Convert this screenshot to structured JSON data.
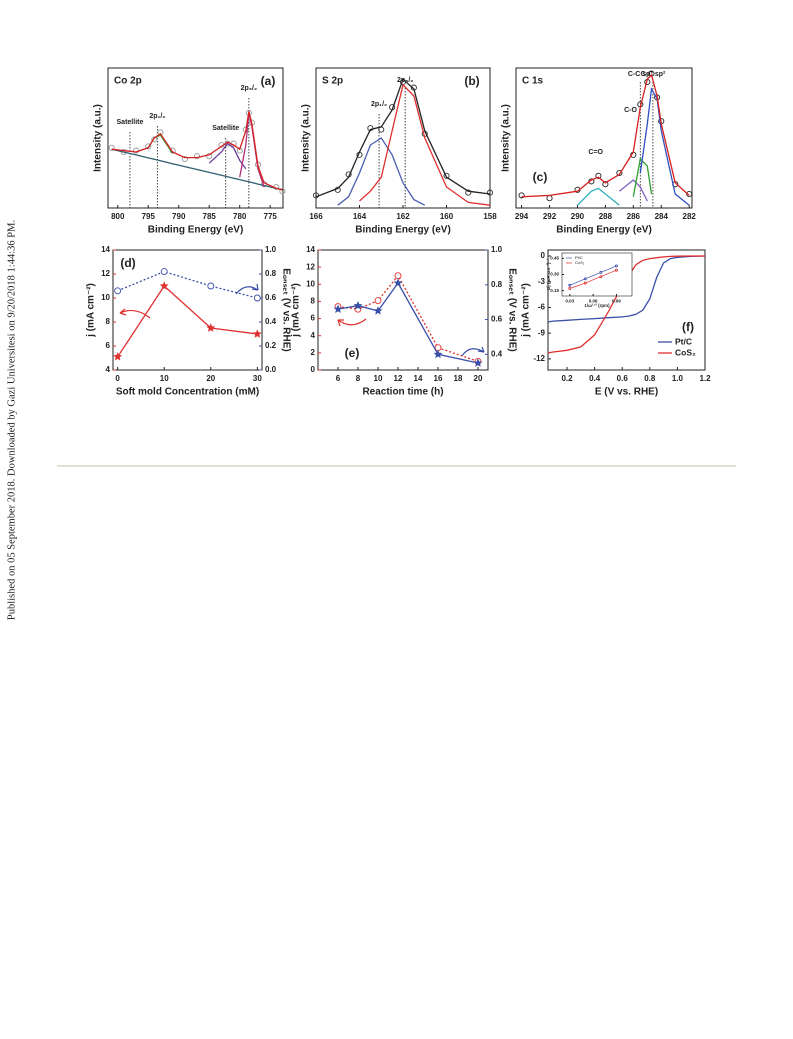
{
  "side_note": "Published on 05 September 2018. Downloaded by Gazi Universitesi on 9/20/2018 1:44:36 PM.",
  "chart_data": [
    {
      "type": "line",
      "title": "Co 2p",
      "panel_label": "(a)",
      "xlabel": "Binding Energy (eV)",
      "ylabel": "Intensity (a.u.)",
      "x": [
        801,
        799,
        797,
        795,
        794,
        793,
        791,
        789,
        787,
        785,
        783,
        782,
        781,
        780,
        779,
        778.5,
        778,
        777,
        776,
        774,
        773
      ],
      "xlim": [
        801.6,
        772.9
      ],
      "xticks": [
        800,
        795,
        790,
        785,
        780,
        775
      ],
      "ylim": [
        0,
        100
      ],
      "series": [
        {
          "color": "#9a9a9a",
          "style": "points",
          "values": [
            43,
            40,
            41,
            44,
            49,
            54,
            41,
            35,
            37,
            37,
            45,
            46,
            46,
            41,
            56,
            68,
            61,
            31,
            17,
            15,
            12
          ]
        },
        {
          "color": "#2f5f6f",
          "values": [
            42,
            39.9,
            37.9,
            35.8,
            34.8,
            33.7,
            31.6,
            29.6,
            27.5,
            25.4,
            23.4,
            22.3,
            21.3,
            20.3,
            19.2,
            18.7,
            18.2,
            17.1,
            16.1,
            14,
            13
          ]
        },
        {
          "color": "#3aa040",
          "values": [
            null,
            null,
            null,
            43,
            50,
            52,
            39,
            null,
            null,
            null,
            null,
            null,
            null,
            null,
            null,
            null,
            null,
            null,
            null,
            null,
            null
          ]
        },
        {
          "color": "#6a3d9a",
          "values": [
            null,
            null,
            null,
            null,
            null,
            null,
            null,
            null,
            null,
            32,
            40,
            46,
            43,
            34,
            28,
            null,
            null,
            null,
            null,
            null,
            null
          ]
        },
        {
          "color": "#b0307a",
          "values": [
            null,
            null,
            null,
            null,
            null,
            null,
            null,
            null,
            null,
            null,
            null,
            null,
            null,
            22,
            45,
            68,
            58,
            28,
            15,
            null,
            null
          ]
        },
        {
          "color": "#d62020",
          "values": [
            42,
            41,
            40,
            43,
            50,
            53,
            40,
            36,
            36,
            38,
            44,
            47,
            45,
            42,
            55,
            69,
            60,
            30,
            18,
            14,
            13
          ]
        }
      ],
      "markers": [
        {
          "x": 798,
          "label": "Satellite",
          "dotted": true
        },
        {
          "x": 793.5,
          "label": "2p₁/₂",
          "dotted": true
        },
        {
          "x": 782.3,
          "label": "Satellite",
          "dotted": true
        },
        {
          "x": 778.5,
          "label": "2p₃/₂",
          "dotted": true
        }
      ]
    },
    {
      "type": "line",
      "title": "S 2p",
      "panel_label": "(b)",
      "xlabel": "Binding Energy (eV)",
      "ylabel": "Intensity (a.u.)",
      "x": [
        166,
        165,
        164.5,
        164,
        163.5,
        163,
        162.5,
        162,
        161.5,
        161,
        160,
        159,
        158
      ],
      "xlim": [
        166,
        158
      ],
      "xticks": [
        166,
        164,
        162,
        160,
        158
      ],
      "ylim": [
        0,
        100
      ],
      "series": [
        {
          "color": "#333333",
          "style": "points",
          "values": [
            9,
            13,
            24,
            38,
            57,
            56,
            72,
            90,
            86,
            53,
            23,
            11,
            11
          ]
        },
        {
          "color": "#4a5fb0",
          "values": [
            null,
            2,
            8,
            25,
            45,
            50,
            38,
            18,
            6,
            2,
            null,
            null,
            null
          ]
        },
        {
          "color": "#e03030",
          "values": [
            null,
            null,
            null,
            5,
            12,
            22,
            55,
            88,
            80,
            50,
            15,
            4,
            2
          ]
        },
        {
          "color": "#222222",
          "values": [
            8,
            14,
            22,
            40,
            56,
            58,
            70,
            92,
            85,
            55,
            22,
            12,
            10
          ]
        }
      ],
      "markers": [
        {
          "x": 163.1,
          "label": "2p₁/₂",
          "dotted": true
        },
        {
          "x": 161.9,
          "label": "2p₃/₂",
          "dotted": true
        }
      ]
    },
    {
      "type": "line",
      "title": "C 1s",
      "panel_label": "(c)",
      "xlabel": "Binding Energy (eV)",
      "ylabel": "Intensity (a.u.)",
      "x": [
        294,
        292,
        290,
        289,
        288.5,
        288,
        287,
        286,
        285.5,
        285,
        284.7,
        284.3,
        284,
        283,
        282
      ],
      "xlim": [
        294.4,
        281.8
      ],
      "xticks": [
        294,
        292,
        290,
        288,
        286,
        284,
        282
      ],
      "ylim": [
        0,
        100
      ],
      "series": [
        {
          "color": "#222222",
          "style": "points",
          "values": [
            9,
            7,
            13,
            19,
            23,
            17,
            25,
            38,
            74,
            90,
            96,
            79,
            62,
            17,
            10
          ]
        },
        {
          "color": "#30b0c0",
          "values": [
            null,
            null,
            2,
            12,
            14,
            10,
            2,
            null,
            null,
            null,
            null,
            null,
            null,
            null,
            null
          ]
        },
        {
          "color": "#8060c0",
          "values": [
            null,
            null,
            null,
            null,
            null,
            null,
            12,
            20,
            15,
            5,
            null,
            null,
            null,
            null,
            null
          ]
        },
        {
          "color": "#30a030",
          "values": [
            null,
            null,
            null,
            null,
            null,
            null,
            null,
            8,
            35,
            30,
            10,
            null,
            null,
            null,
            null
          ]
        },
        {
          "color": "#3050c0",
          "values": [
            null,
            null,
            null,
            null,
            null,
            null,
            null,
            null,
            25,
            60,
            85,
            78,
            55,
            10,
            2
          ]
        },
        {
          "color": "#d62020",
          "values": [
            8,
            9,
            12,
            20,
            22,
            18,
            24,
            40,
            72,
            92,
            95,
            80,
            60,
            18,
            9
          ]
        }
      ],
      "markers": [
        {
          "x": 288.7,
          "label": "C=O",
          "dotted": false
        },
        {
          "x": 286.2,
          "label": "C-O",
          "dotted": false
        },
        {
          "x": 285.5,
          "label": "C-C sp³",
          "dotted": true
        },
        {
          "x": 284.6,
          "label": "C-C sp²",
          "dotted": true
        }
      ]
    },
    {
      "type": "line",
      "panel_label": "(d)",
      "xlabel": "Soft mold Concentration (mM)",
      "ylabel": "j (mA cm⁻²)",
      "y2label": "Eₒₙₛₑₜ (V vs. RHE)",
      "ycolor": "#e03030",
      "y2color": "#3a4fa8",
      "x": [
        0,
        10,
        20,
        30
      ],
      "xlim": [
        -1,
        31
      ],
      "xticks": [
        0,
        10,
        20,
        30
      ],
      "ylim": [
        4,
        14
      ],
      "yticks": [
        4,
        6,
        8,
        10,
        12,
        14
      ],
      "y2lim": [
        0,
        1
      ],
      "y2ticks": [
        {
          "value": 0,
          "label": "0.0"
        },
        0.2,
        0.4,
        0.6,
        0.8,
        {
          "value": 1,
          "label": "1.0"
        }
      ],
      "series": [
        {
          "color": "#e03030",
          "marker": "star",
          "values": [
            5.1,
            11,
            7.5,
            7
          ]
        },
        {
          "color": "#3a4fa8",
          "marker": "circle",
          "dash": true,
          "axis": "y2",
          "values": [
            0.66,
            0.82,
            0.7,
            0.6
          ]
        }
      ]
    },
    {
      "type": "line",
      "panel_label": "(e)",
      "xlabel": "Reaction time (h)",
      "ylabel": "j (mA cm⁻²)",
      "y2label": "Eₒₙₛₑₜ (V vs. RHE)",
      "ycolor": "#e03030",
      "y2color": "#3a4fa8",
      "x": [
        6,
        8,
        10,
        12,
        16,
        20
      ],
      "xlim": [
        4,
        21
      ],
      "xticks": [
        6,
        8,
        10,
        12,
        14,
        16,
        18,
        20
      ],
      "ylim": [
        0,
        14
      ],
      "yticks": [
        0,
        2,
        4,
        6,
        8,
        10,
        12,
        14
      ],
      "y2lim": [
        0.31,
        1
      ],
      "y2ticks": [
        0.4,
        0.6,
        0.8,
        {
          "value": 1,
          "label": "1.0"
        }
      ],
      "series": [
        {
          "color": "#e03030",
          "marker": "circle",
          "dash": true,
          "values": [
            7.4,
            7.1,
            8.1,
            11,
            2.6,
            1.0
          ]
        },
        {
          "color": "#3a4fa8",
          "marker": "star",
          "axis": "y2",
          "values": [
            0.66,
            0.68,
            0.65,
            0.81,
            0.4,
            0.35
          ]
        }
      ]
    },
    {
      "type": "line",
      "panel_label": "(f)",
      "xlabel": "E (V vs. RHE)",
      "ylabel": "j (mA cm⁻²)",
      "legend": "lower right",
      "x": [
        0.062,
        0.1,
        0.2,
        0.3,
        0.4,
        0.5,
        0.6,
        0.65,
        0.7,
        0.75,
        0.8,
        0.85,
        0.9,
        0.95,
        1.0,
        1.1,
        1.2
      ],
      "xlim": [
        0.062,
        1.2
      ],
      "xticks": [
        0.2,
        0.4,
        0.6,
        0.8,
        {
          "value": 1,
          "label": "1.0"
        },
        1.2
      ],
      "ylim": [
        -13.3,
        0.7
      ],
      "yticks": [
        0,
        -3,
        -6,
        -9,
        -12
      ],
      "series": [
        {
          "name": "Pt/C",
          "color": "#3a4fa8",
          "values": [
            -7.7,
            -7.6,
            -7.5,
            -7.4,
            -7.3,
            -7.2,
            -7.1,
            -7.0,
            -6.8,
            -6.3,
            -5.0,
            -2.5,
            -0.8,
            -0.3,
            -0.15,
            -0.05,
            0
          ]
        },
        {
          "name": "CoS₂",
          "color": "#e03030",
          "values": [
            -11.3,
            -11.2,
            -11.0,
            -10.6,
            -9.2,
            -6.5,
            -3.5,
            -2.2,
            -1.0,
            -0.5,
            -0.3,
            -0.2,
            -0.1,
            -0.05,
            -0.02,
            0,
            0
          ]
        }
      ]
    },
    {
      "type": "line",
      "xlabel": "1/ω¹ᐟ² (rpm)",
      "ylabel": "1/j (mA cm⁻²)⁻¹",
      "legend": "upper left",
      "x": [
        0.03,
        0.05,
        0.07,
        0.09
      ],
      "xlim": [
        0.02,
        0.11
      ],
      "xticks": [
        0.03,
        0.06,
        0.09
      ],
      "ylim": [
        0.1,
        0.5
      ],
      "yticks": [
        0.15,
        {
          "value": 0.3,
          "label": "0.30"
        },
        0.45
      ],
      "series": [
        {
          "name": "Pt/C",
          "color": "#3a4fa8",
          "marker": "circle",
          "values": [
            0.2,
            0.26,
            0.32,
            0.38
          ]
        },
        {
          "name": "CoS₂",
          "color": "#e03030",
          "marker": "circle",
          "values": [
            0.17,
            0.22,
            0.28,
            0.34
          ]
        }
      ]
    }
  ]
}
